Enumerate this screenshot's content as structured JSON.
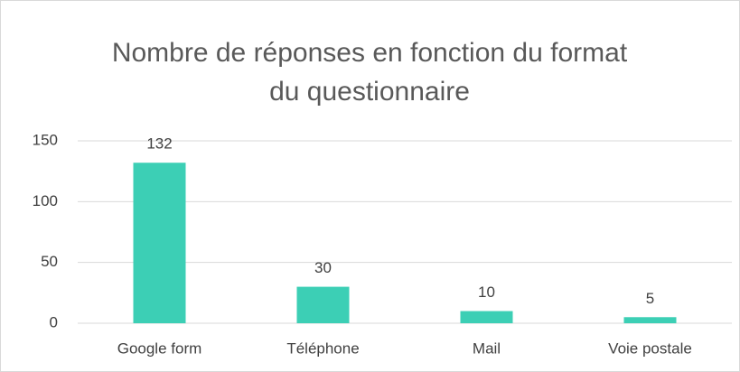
{
  "chart_data": {
    "type": "bar",
    "title": "Nombre de réponses en fonction du format du questionnaire",
    "categories": [
      "Google form",
      "Téléphone",
      "Mail",
      "Voie postale"
    ],
    "values": [
      132,
      30,
      10,
      5
    ],
    "color": "#3ccfb5",
    "ylim": [
      0,
      150
    ],
    "yticks": [
      0,
      50,
      100,
      150
    ],
    "grid": true
  }
}
